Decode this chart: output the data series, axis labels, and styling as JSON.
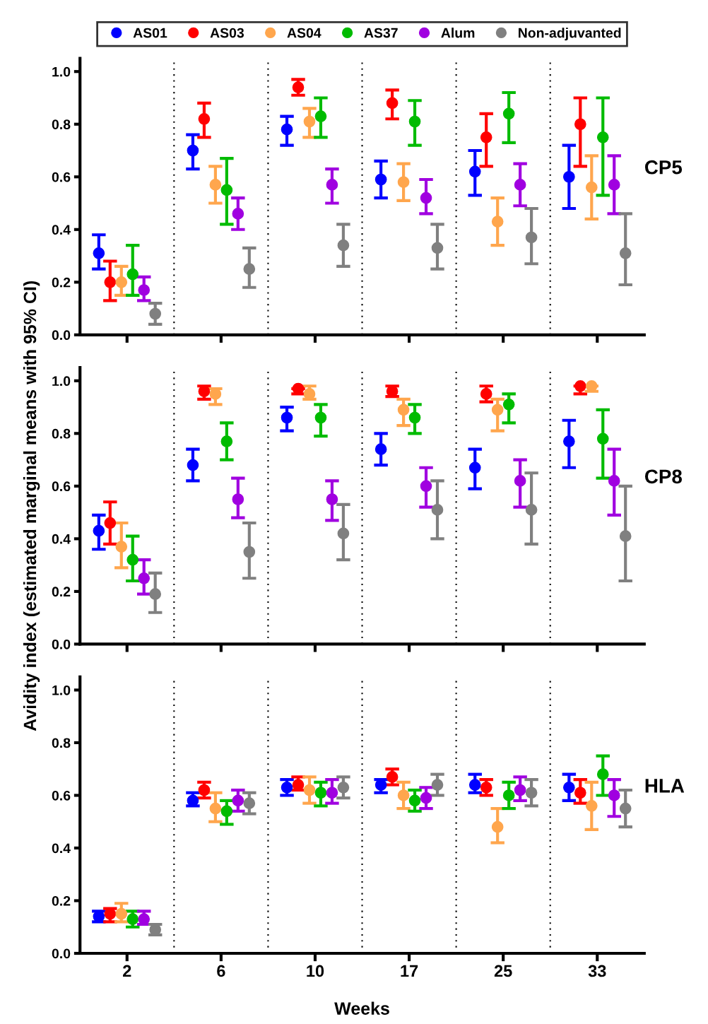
{
  "chart_data": [
    {
      "type": "scatter",
      "title": "CP5",
      "categories": [
        "2",
        "6",
        "10",
        "17",
        "25",
        "33"
      ],
      "ylim": [
        0,
        1.05
      ],
      "yticks": [
        {
          "value": 0,
          "label": "0.0"
        },
        {
          "value": 0.2,
          "label": "0.2"
        },
        {
          "value": 0.4,
          "label": "0.4"
        },
        {
          "value": 0.6,
          "label": "0.6"
        },
        {
          "value": 0.8,
          "label": "0.8"
        },
        {
          "value": 1,
          "label": "1.0"
        }
      ],
      "tick_labels": "y",
      "marker": "circle",
      "grid": "x",
      "legend": "top",
      "series": [
        {
          "name": "AS01",
          "color": "#0000ff",
          "values": [
            0.31,
            0.7,
            0.78,
            0.59,
            0.62,
            0.6
          ],
          "errors": [
            [
              0.25,
              0.38
            ],
            [
              0.63,
              0.76
            ],
            [
              0.72,
              0.83
            ],
            [
              0.52,
              0.66
            ],
            [
              0.53,
              0.7
            ],
            [
              0.48,
              0.72
            ]
          ]
        },
        {
          "name": "AS03",
          "color": "#ff0000",
          "values": [
            0.2,
            0.82,
            0.94,
            0.88,
            0.75,
            0.8
          ],
          "errors": [
            [
              0.13,
              0.28
            ],
            [
              0.75,
              0.88
            ],
            [
              0.91,
              0.97
            ],
            [
              0.82,
              0.93
            ],
            [
              0.64,
              0.84
            ],
            [
              0.64,
              0.9
            ]
          ]
        },
        {
          "name": "AS04",
          "color": "#ffa64d",
          "values": [
            0.2,
            0.57,
            0.81,
            0.58,
            0.43,
            0.56
          ],
          "errors": [
            [
              0.15,
              0.26
            ],
            [
              0.5,
              0.64
            ],
            [
              0.75,
              0.86
            ],
            [
              0.51,
              0.65
            ],
            [
              0.34,
              0.52
            ],
            [
              0.44,
              0.68
            ]
          ]
        },
        {
          "name": "AS37",
          "color": "#00bb00",
          "values": [
            0.23,
            0.55,
            0.83,
            0.81,
            0.84,
            0.75
          ],
          "errors": [
            [
              0.15,
              0.34
            ],
            [
              0.42,
              0.67
            ],
            [
              0.75,
              0.9
            ],
            [
              0.72,
              0.89
            ],
            [
              0.73,
              0.92
            ],
            [
              0.53,
              0.9
            ]
          ]
        },
        {
          "name": "Alum",
          "color": "#a000e0",
          "values": [
            0.17,
            0.46,
            0.57,
            0.52,
            0.57,
            0.57
          ],
          "errors": [
            [
              0.13,
              0.22
            ],
            [
              0.4,
              0.52
            ],
            [
              0.5,
              0.63
            ],
            [
              0.46,
              0.59
            ],
            [
              0.49,
              0.65
            ],
            [
              0.46,
              0.68
            ]
          ]
        },
        {
          "name": "Non-adjuvanted",
          "color": "#808080",
          "values": [
            0.08,
            0.25,
            0.34,
            0.33,
            0.37,
            0.31
          ],
          "errors": [
            [
              0.04,
              0.12
            ],
            [
              0.18,
              0.33
            ],
            [
              0.26,
              0.42
            ],
            [
              0.25,
              0.42
            ],
            [
              0.27,
              0.48
            ],
            [
              0.19,
              0.46
            ]
          ]
        }
      ]
    },
    {
      "type": "scatter",
      "title": "CP8",
      "ylabel": "Avidity index (estimated marginal means with 95% CI)",
      "categories": [
        "2",
        "6",
        "10",
        "17",
        "25",
        "33"
      ],
      "ylim": [
        0,
        1.05
      ],
      "yticks": [
        {
          "value": 0,
          "label": "0.0"
        },
        {
          "value": 0.2,
          "label": "0.2"
        },
        {
          "value": 0.4,
          "label": "0.4"
        },
        {
          "value": 0.6,
          "label": "0.6"
        },
        {
          "value": 0.8,
          "label": "0.8"
        },
        {
          "value": 1,
          "label": "1.0"
        }
      ],
      "tick_labels": "y",
      "marker": "circle",
      "grid": "x",
      "series": [
        {
          "color": "#0000ff",
          "values": [
            0.43,
            0.68,
            0.86,
            0.74,
            0.67,
            0.77
          ],
          "errors": [
            [
              0.36,
              0.49
            ],
            [
              0.62,
              0.74
            ],
            [
              0.81,
              0.9
            ],
            [
              0.68,
              0.8
            ],
            [
              0.59,
              0.74
            ],
            [
              0.67,
              0.85
            ]
          ]
        },
        {
          "color": "#ff0000",
          "values": [
            0.46,
            0.96,
            0.97,
            0.96,
            0.95,
            0.98
          ],
          "errors": [
            [
              0.38,
              0.54
            ],
            [
              0.93,
              0.98
            ],
            [
              0.95,
              0.97
            ],
            [
              0.94,
              0.98
            ],
            [
              0.92,
              0.98
            ],
            [
              0.95,
              0.98
            ]
          ]
        },
        {
          "color": "#ffa64d",
          "values": [
            0.37,
            0.95,
            0.95,
            0.89,
            0.89,
            0.98
          ],
          "errors": [
            [
              0.29,
              0.46
            ],
            [
              0.91,
              0.97
            ],
            [
              0.93,
              0.98
            ],
            [
              0.83,
              0.93
            ],
            [
              0.81,
              0.93
            ],
            [
              0.96,
              0.98
            ]
          ]
        },
        {
          "color": "#00bb00",
          "values": [
            0.32,
            0.77,
            0.86,
            0.86,
            0.91,
            0.78
          ],
          "errors": [
            [
              0.24,
              0.41
            ],
            [
              0.7,
              0.84
            ],
            [
              0.79,
              0.91
            ],
            [
              0.8,
              0.91
            ],
            [
              0.84,
              0.95
            ],
            [
              0.63,
              0.89
            ]
          ]
        },
        {
          "color": "#a000e0",
          "values": [
            0.25,
            0.55,
            0.55,
            0.6,
            0.62,
            0.62
          ],
          "errors": [
            [
              0.19,
              0.32
            ],
            [
              0.48,
              0.63
            ],
            [
              0.47,
              0.62
            ],
            [
              0.52,
              0.67
            ],
            [
              0.52,
              0.7
            ],
            [
              0.49,
              0.74
            ]
          ]
        },
        {
          "color": "#808080",
          "values": [
            0.19,
            0.35,
            0.42,
            0.51,
            0.51,
            0.41
          ],
          "errors": [
            [
              0.12,
              0.27
            ],
            [
              0.25,
              0.46
            ],
            [
              0.32,
              0.53
            ],
            [
              0.4,
              0.62
            ],
            [
              0.38,
              0.65
            ],
            [
              0.24,
              0.6
            ]
          ]
        }
      ]
    },
    {
      "type": "scatter",
      "title": "HLA",
      "xlabel": "Weeks",
      "categories": [
        "2",
        "6",
        "10",
        "17",
        "25",
        "33"
      ],
      "ylim": [
        0,
        1.05
      ],
      "yticks": [
        {
          "value": 0,
          "label": "0.0"
        },
        {
          "value": 0.2,
          "label": "0.2"
        },
        {
          "value": 0.4,
          "label": "0.4"
        },
        {
          "value": 0.6,
          "label": "0.6"
        },
        {
          "value": 0.8,
          "label": "0.8"
        },
        {
          "value": 1,
          "label": "1.0"
        }
      ],
      "marker": "circle",
      "grid": "x",
      "series": [
        {
          "color": "#0000ff",
          "values": [
            0.14,
            0.58,
            0.63,
            0.64,
            0.64,
            0.63
          ],
          "errors": [
            [
              0.12,
              0.16
            ],
            [
              0.56,
              0.61
            ],
            [
              0.6,
              0.66
            ],
            [
              0.61,
              0.66
            ],
            [
              0.61,
              0.68
            ],
            [
              0.58,
              0.68
            ]
          ]
        },
        {
          "color": "#ff0000",
          "values": [
            0.15,
            0.62,
            0.64,
            0.67,
            0.63,
            0.61
          ],
          "errors": [
            [
              0.12,
              0.17
            ],
            [
              0.59,
              0.65
            ],
            [
              0.62,
              0.67
            ],
            [
              0.64,
              0.7
            ],
            [
              0.6,
              0.66
            ],
            [
              0.57,
              0.66
            ]
          ]
        },
        {
          "color": "#ffa64d",
          "values": [
            0.15,
            0.55,
            0.62,
            0.6,
            0.48,
            0.56
          ],
          "errors": [
            [
              0.12,
              0.19
            ],
            [
              0.5,
              0.61
            ],
            [
              0.57,
              0.67
            ],
            [
              0.55,
              0.65
            ],
            [
              0.42,
              0.55
            ],
            [
              0.47,
              0.65
            ]
          ]
        },
        {
          "color": "#00bb00",
          "values": [
            0.13,
            0.54,
            0.61,
            0.58,
            0.6,
            0.68
          ],
          "errors": [
            [
              0.1,
              0.16
            ],
            [
              0.49,
              0.58
            ],
            [
              0.56,
              0.65
            ],
            [
              0.54,
              0.62
            ],
            [
              0.55,
              0.65
            ],
            [
              0.6,
              0.75
            ]
          ]
        },
        {
          "color": "#a000e0",
          "values": [
            0.13,
            0.58,
            0.61,
            0.59,
            0.62,
            0.6
          ],
          "errors": [
            [
              0.11,
              0.16
            ],
            [
              0.54,
              0.62
            ],
            [
              0.57,
              0.66
            ],
            [
              0.55,
              0.63
            ],
            [
              0.58,
              0.67
            ],
            [
              0.52,
              0.66
            ]
          ]
        },
        {
          "color": "#808080",
          "values": [
            0.09,
            0.57,
            0.63,
            0.64,
            0.61,
            0.55
          ],
          "errors": [
            [
              0.07,
              0.11
            ],
            [
              0.53,
              0.61
            ],
            [
              0.59,
              0.67
            ],
            [
              0.6,
              0.68
            ],
            [
              0.56,
              0.66
            ],
            [
              0.48,
              0.62
            ]
          ]
        }
      ]
    }
  ]
}
